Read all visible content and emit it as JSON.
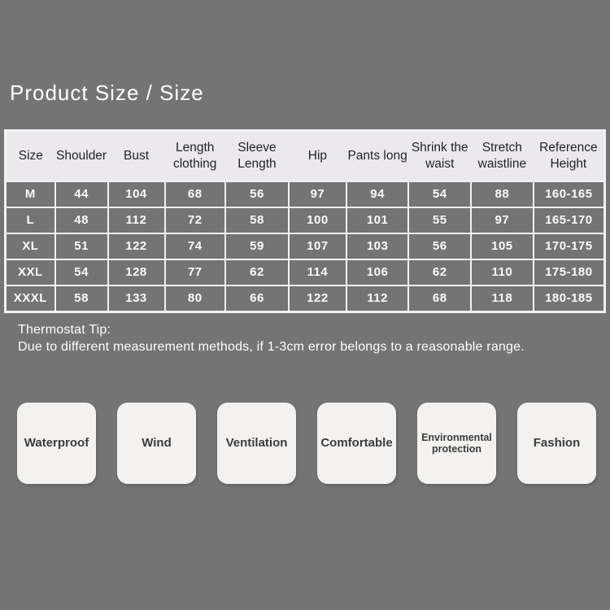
{
  "page": {
    "title": "Product Size / Size"
  },
  "size_table": {
    "columns": [
      "Size",
      "Shoulder",
      "Bust",
      "Length clothing",
      "Sleeve Length",
      "Hip",
      "Pants long",
      "Shrink the waist",
      "Stretch waistline",
      "Reference Height"
    ],
    "rows": [
      {
        "size": "M",
        "values": [
          "44",
          "104",
          "68",
          "56",
          "97",
          "94",
          "54",
          "88",
          "160-165"
        ]
      },
      {
        "size": "L",
        "values": [
          "48",
          "112",
          "72",
          "58",
          "100",
          "101",
          "55",
          "97",
          "165-170"
        ]
      },
      {
        "size": "XL",
        "values": [
          "51",
          "122",
          "74",
          "59",
          "107",
          "103",
          "56",
          "105",
          "170-175"
        ]
      },
      {
        "size": "XXL",
        "values": [
          "54",
          "128",
          "77",
          "62",
          "114",
          "106",
          "62",
          "110",
          "175-180"
        ]
      },
      {
        "size": "XXXL",
        "values": [
          "58",
          "133",
          "80",
          "66",
          "122",
          "112",
          "68",
          "118",
          "180-185"
        ]
      }
    ]
  },
  "tip": {
    "heading": "Thermostat Tip:",
    "body": "Due to different measurement methods, if 1-3cm error belongs to a reasonable range."
  },
  "features": [
    {
      "label": "Waterproof"
    },
    {
      "label": "Wind"
    },
    {
      "label": "Ventilation"
    },
    {
      "label": "Comfortable"
    },
    {
      "label": "Environmental protection"
    },
    {
      "label": "Fashion"
    }
  ],
  "colors": {
    "background": "#747474",
    "title_text": "#ffffff",
    "table_header_bg": "#ebe9ed",
    "table_header_text": "#222222",
    "table_grid": "#f2f0f3",
    "table_cell_text": "#fafafa",
    "tip_text": "#fdfdfd",
    "feature_box_bg": "#f3f2f0",
    "feature_box_text": "#3b3b3b"
  }
}
